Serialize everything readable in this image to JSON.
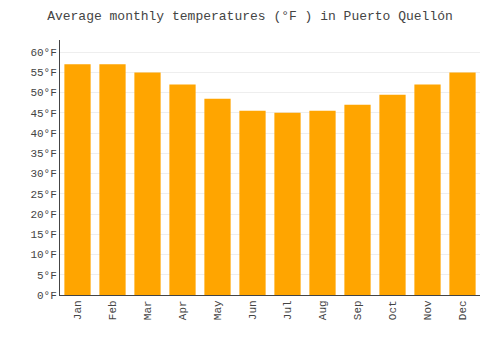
{
  "chart_data": {
    "type": "bar",
    "title": "Average monthly temperatures (°F ) in Puerto Quellón",
    "categories": [
      "Jan",
      "Feb",
      "Mar",
      "Apr",
      "May",
      "Jun",
      "Jul",
      "Aug",
      "Sep",
      "Oct",
      "Nov",
      "Dec"
    ],
    "values": [
      57,
      57,
      55,
      52,
      48.5,
      45.5,
      45,
      45.5,
      47,
      49.5,
      52,
      55
    ],
    "color": "#FFA500",
    "ylim": [
      0,
      63
    ],
    "yticks": [
      {
        "value": 0,
        "label": "0°F"
      },
      {
        "value": 5,
        "label": "5°F"
      },
      {
        "value": 10,
        "label": "10°F"
      },
      {
        "value": 15,
        "label": "15°F"
      },
      {
        "value": 20,
        "label": "20°F"
      },
      {
        "value": 25,
        "label": "25°F"
      },
      {
        "value": 30,
        "label": "30°F"
      },
      {
        "value": 35,
        "label": "35°F"
      },
      {
        "value": 40,
        "label": "40°F"
      },
      {
        "value": 45,
        "label": "45°F"
      },
      {
        "value": 50,
        "label": "50°F"
      },
      {
        "value": 55,
        "label": "55°F"
      },
      {
        "value": 60,
        "label": "60°F"
      }
    ],
    "grid": true
  }
}
